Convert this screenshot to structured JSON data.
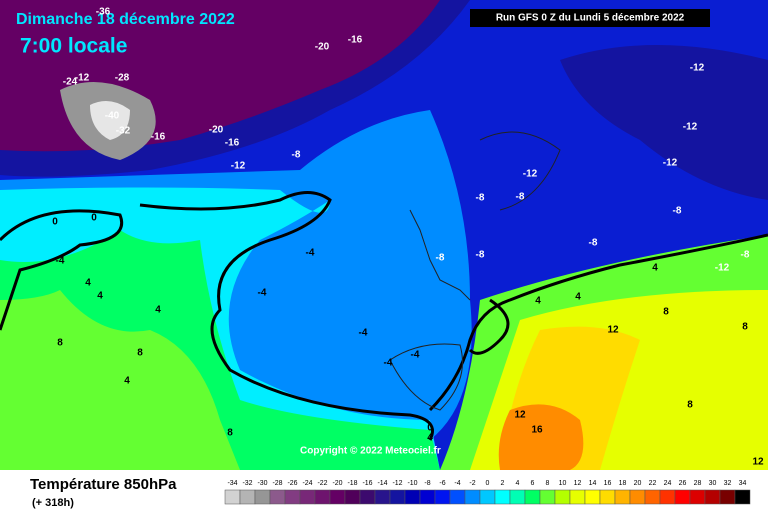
{
  "header": {
    "date": "Dimanche 18 décembre 2022",
    "time": "7:00 locale",
    "run": "Run GFS 0 Z du Lundi 5 décembre 2022"
  },
  "copyright": "Copyright © 2022 Meteociel.fr",
  "legend": {
    "title": "Température 850hPa",
    "lead": "(+ 318h)",
    "scale": [
      {
        "value": -34,
        "color": "#d2d2d2"
      },
      {
        "value": -32,
        "color": "#b4b4b4"
      },
      {
        "value": -30,
        "color": "#969696"
      },
      {
        "value": -28,
        "color": "#8c5a8c"
      },
      {
        "value": -26,
        "color": "#823c82"
      },
      {
        "value": -24,
        "color": "#782878"
      },
      {
        "value": -22,
        "color": "#6e146e"
      },
      {
        "value": -20,
        "color": "#640064"
      },
      {
        "value": -18,
        "color": "#50005a"
      },
      {
        "value": -16,
        "color": "#3c0a6e"
      },
      {
        "value": -14,
        "color": "#28148c"
      },
      {
        "value": -12,
        "color": "#1414a0"
      },
      {
        "value": -10,
        "color": "#0000b4"
      },
      {
        "value": -8,
        "color": "#0000d2"
      },
      {
        "value": -6,
        "color": "#0014f0"
      },
      {
        "value": -4,
        "color": "#0050ff"
      },
      {
        "value": -2,
        "color": "#008cff"
      },
      {
        "value": 0,
        "color": "#00c8ff"
      },
      {
        "value": 2,
        "color": "#00ffff"
      },
      {
        "value": 4,
        "color": "#00ffb4"
      },
      {
        "value": 6,
        "color": "#00ff64"
      },
      {
        "value": 8,
        "color": "#64ff32"
      },
      {
        "value": 10,
        "color": "#b4ff00"
      },
      {
        "value": 12,
        "color": "#e6ff00"
      },
      {
        "value": 14,
        "color": "#ffff00"
      },
      {
        "value": 16,
        "color": "#ffdc00"
      },
      {
        "value": 18,
        "color": "#ffb400"
      },
      {
        "value": 20,
        "color": "#ff8c00"
      },
      {
        "value": 22,
        "color": "#ff6400"
      },
      {
        "value": 24,
        "color": "#ff3200"
      },
      {
        "value": 26,
        "color": "#ff0000"
      },
      {
        "value": 28,
        "color": "#dc0000"
      },
      {
        "value": 30,
        "color": "#b40000"
      },
      {
        "value": 32,
        "color": "#780000"
      },
      {
        "value": 34,
        "color": "#000000"
      }
    ]
  },
  "contour_labels": [
    -36,
    -16,
    -20,
    -24,
    -28,
    -12,
    -40,
    -32,
    -16,
    -20,
    -16,
    -8,
    -12,
    -12,
    -12,
    -12,
    -12,
    -8,
    -8,
    -8,
    -8,
    -8,
    -8,
    0,
    0,
    -4,
    -4,
    -4,
    -4,
    4,
    4,
    4,
    8,
    8,
    4,
    8,
    4,
    4,
    4,
    8,
    12,
    8,
    12,
    16,
    12,
    -4,
    -4,
    0,
    4,
    -12,
    -8,
    8
  ]
}
